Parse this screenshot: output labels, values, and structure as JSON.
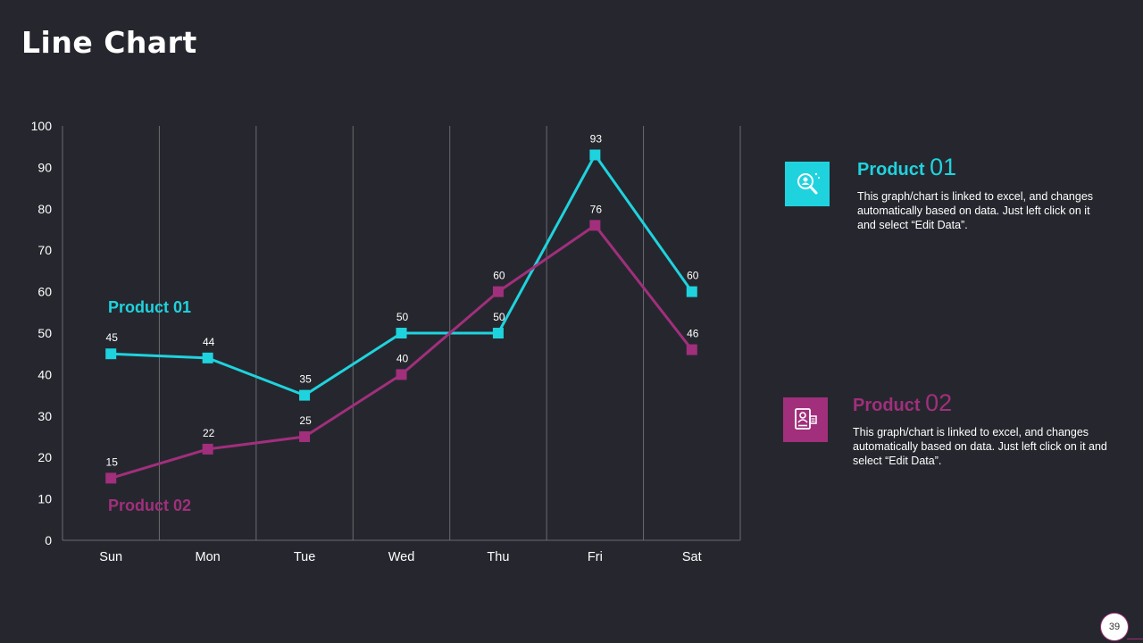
{
  "title": "Line Chart",
  "colors": {
    "product1": "#1fd3de",
    "product2": "#a12f7c",
    "background": "#26272e",
    "grid": "#6a6b72"
  },
  "chart_data": {
    "type": "line",
    "categories": [
      "Sun",
      "Mon",
      "Tue",
      "Wed",
      "Thu",
      "Fri",
      "Sat"
    ],
    "series": [
      {
        "name": "Product 01",
        "values": [
          45,
          44,
          35,
          50,
          50,
          93,
          60
        ]
      },
      {
        "name": "Product 02",
        "values": [
          15,
          22,
          25,
          40,
          60,
          76,
          46
        ]
      }
    ],
    "ylim": [
      0,
      100
    ],
    "yticks": [
      0,
      10,
      20,
      30,
      40,
      50,
      60,
      70,
      80,
      90,
      100
    ],
    "in_chart_labels": [
      "Product 01",
      "Product 02"
    ],
    "title": "",
    "xlabel": "",
    "ylabel": ""
  },
  "legend": [
    {
      "word": "Product",
      "num": "01",
      "icon": "search-user-icon",
      "description": "This graph/chart is linked to excel, and changes automatically based on data. Just left click on it and select “Edit Data”."
    },
    {
      "word": "Product",
      "num": "02",
      "icon": "profile-document-icon",
      "description": "This graph/chart is linked to excel, and changes automatically based on data. Just left click on it and select “Edit Data”."
    }
  ],
  "page_number": "39"
}
